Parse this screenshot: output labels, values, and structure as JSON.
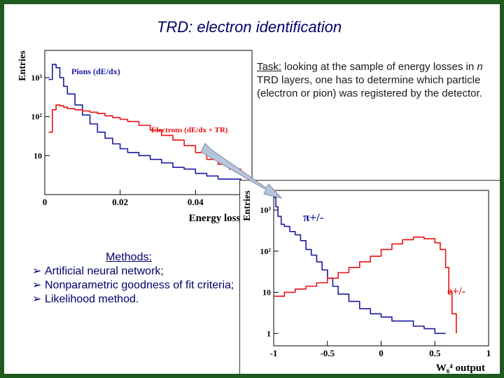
{
  "title": "TRD: electron identification",
  "task": {
    "label": "Task:",
    "text_1": " looking at the sample of energy losses in ",
    "n": "n",
    "text_2": " TRD layers, one has to determine which particle (electron or pion) was registered by the detector."
  },
  "methods": {
    "title": "Methods:",
    "items": [
      "Artificial neural network;",
      "Nonparametric goodness of fit criteria;",
      "Likelihood method."
    ]
  },
  "colors": {
    "pion": "#1a1aa0",
    "electron": "#e81010",
    "arrow": "#b8c4d8"
  },
  "chart_data": [
    {
      "type": "line",
      "ylabel": "Entries",
      "xlabel": "Energy loss, GeV",
      "log_y": true,
      "xlim": [
        0,
        0.055
      ],
      "ylim": [
        1,
        5000
      ],
      "x_ticks": [
        0,
        0.02,
        0.04
      ],
      "x_tick_labels": [
        "0",
        "0.02",
        "0.04"
      ],
      "y_ticks": [
        10,
        100,
        1000
      ],
      "y_tick_labels": [
        "10",
        "10²",
        "10³"
      ],
      "series": [
        {
          "name": "Pions (dE/dx)",
          "x": [
            0.001,
            0.002,
            0.003,
            0.004,
            0.005,
            0.006,
            0.008,
            0.01,
            0.012,
            0.014,
            0.016,
            0.018,
            0.02,
            0.022,
            0.025,
            0.028,
            0.031,
            0.034,
            0.037,
            0.04,
            0.043,
            0.046,
            0.049,
            0.052
          ],
          "values": [
            900,
            2200,
            1800,
            1000,
            600,
            380,
            200,
            110,
            65,
            40,
            28,
            20,
            15,
            12,
            10,
            8,
            6.5,
            5,
            4.5,
            3.5,
            3,
            2.5,
            2.5,
            2
          ]
        },
        {
          "name": "Electrons (dE/dx + TR)",
          "x": [
            0.001,
            0.002,
            0.003,
            0.004,
            0.005,
            0.006,
            0.008,
            0.01,
            0.012,
            0.014,
            0.016,
            0.018,
            0.02,
            0.022,
            0.025,
            0.028,
            0.031,
            0.034,
            0.037,
            0.04,
            0.043,
            0.046,
            0.049,
            0.052
          ],
          "values": [
            40,
            150,
            200,
            190,
            175,
            160,
            150,
            140,
            130,
            120,
            105,
            95,
            85,
            75,
            60,
            45,
            33,
            25,
            18,
            12,
            8,
            6,
            4.5,
            3.5
          ]
        }
      ]
    },
    {
      "type": "line",
      "ylabel": "Entries",
      "xlabel": "W₆⁴ output",
      "log_y": true,
      "xlim": [
        -1,
        1
      ],
      "ylim": [
        0.5,
        3000
      ],
      "x_ticks": [
        -1,
        -0.5,
        0,
        0.5,
        1
      ],
      "x_tick_labels": [
        "-1",
        "-0.5",
        "0",
        "0.5",
        "1"
      ],
      "y_ticks": [
        1,
        10,
        100,
        1000
      ],
      "y_tick_labels": [
        "1",
        "10",
        "10²",
        "10³"
      ],
      "series": [
        {
          "name": "π+/-",
          "x": [
            -1,
            -0.98,
            -0.96,
            -0.93,
            -0.9,
            -0.85,
            -0.8,
            -0.75,
            -0.7,
            -0.65,
            -0.6,
            -0.55,
            -0.5,
            -0.45,
            -0.4,
            -0.3,
            -0.2,
            -0.1,
            0,
            0.1,
            0.2,
            0.3,
            0.4,
            0.5,
            0.6
          ],
          "values": [
            2000,
            1200,
            700,
            450,
            400,
            300,
            250,
            180,
            110,
            80,
            55,
            35,
            22,
            14,
            9,
            6,
            4,
            3,
            2.5,
            2,
            2,
            1.5,
            1.3,
            1,
            1
          ]
        },
        {
          "name": "e+/-",
          "x": [
            -1,
            -0.9,
            -0.8,
            -0.7,
            -0.6,
            -0.5,
            -0.4,
            -0.3,
            -0.2,
            -0.1,
            0,
            0.1,
            0.2,
            0.3,
            0.4,
            0.5,
            0.55,
            0.6,
            0.63,
            0.66,
            0.7
          ],
          "values": [
            8,
            10,
            12,
            14,
            17,
            22,
            30,
            40,
            55,
            75,
            110,
            150,
            190,
            220,
            200,
            160,
            110,
            40,
            10,
            3,
            1
          ]
        }
      ]
    }
  ]
}
